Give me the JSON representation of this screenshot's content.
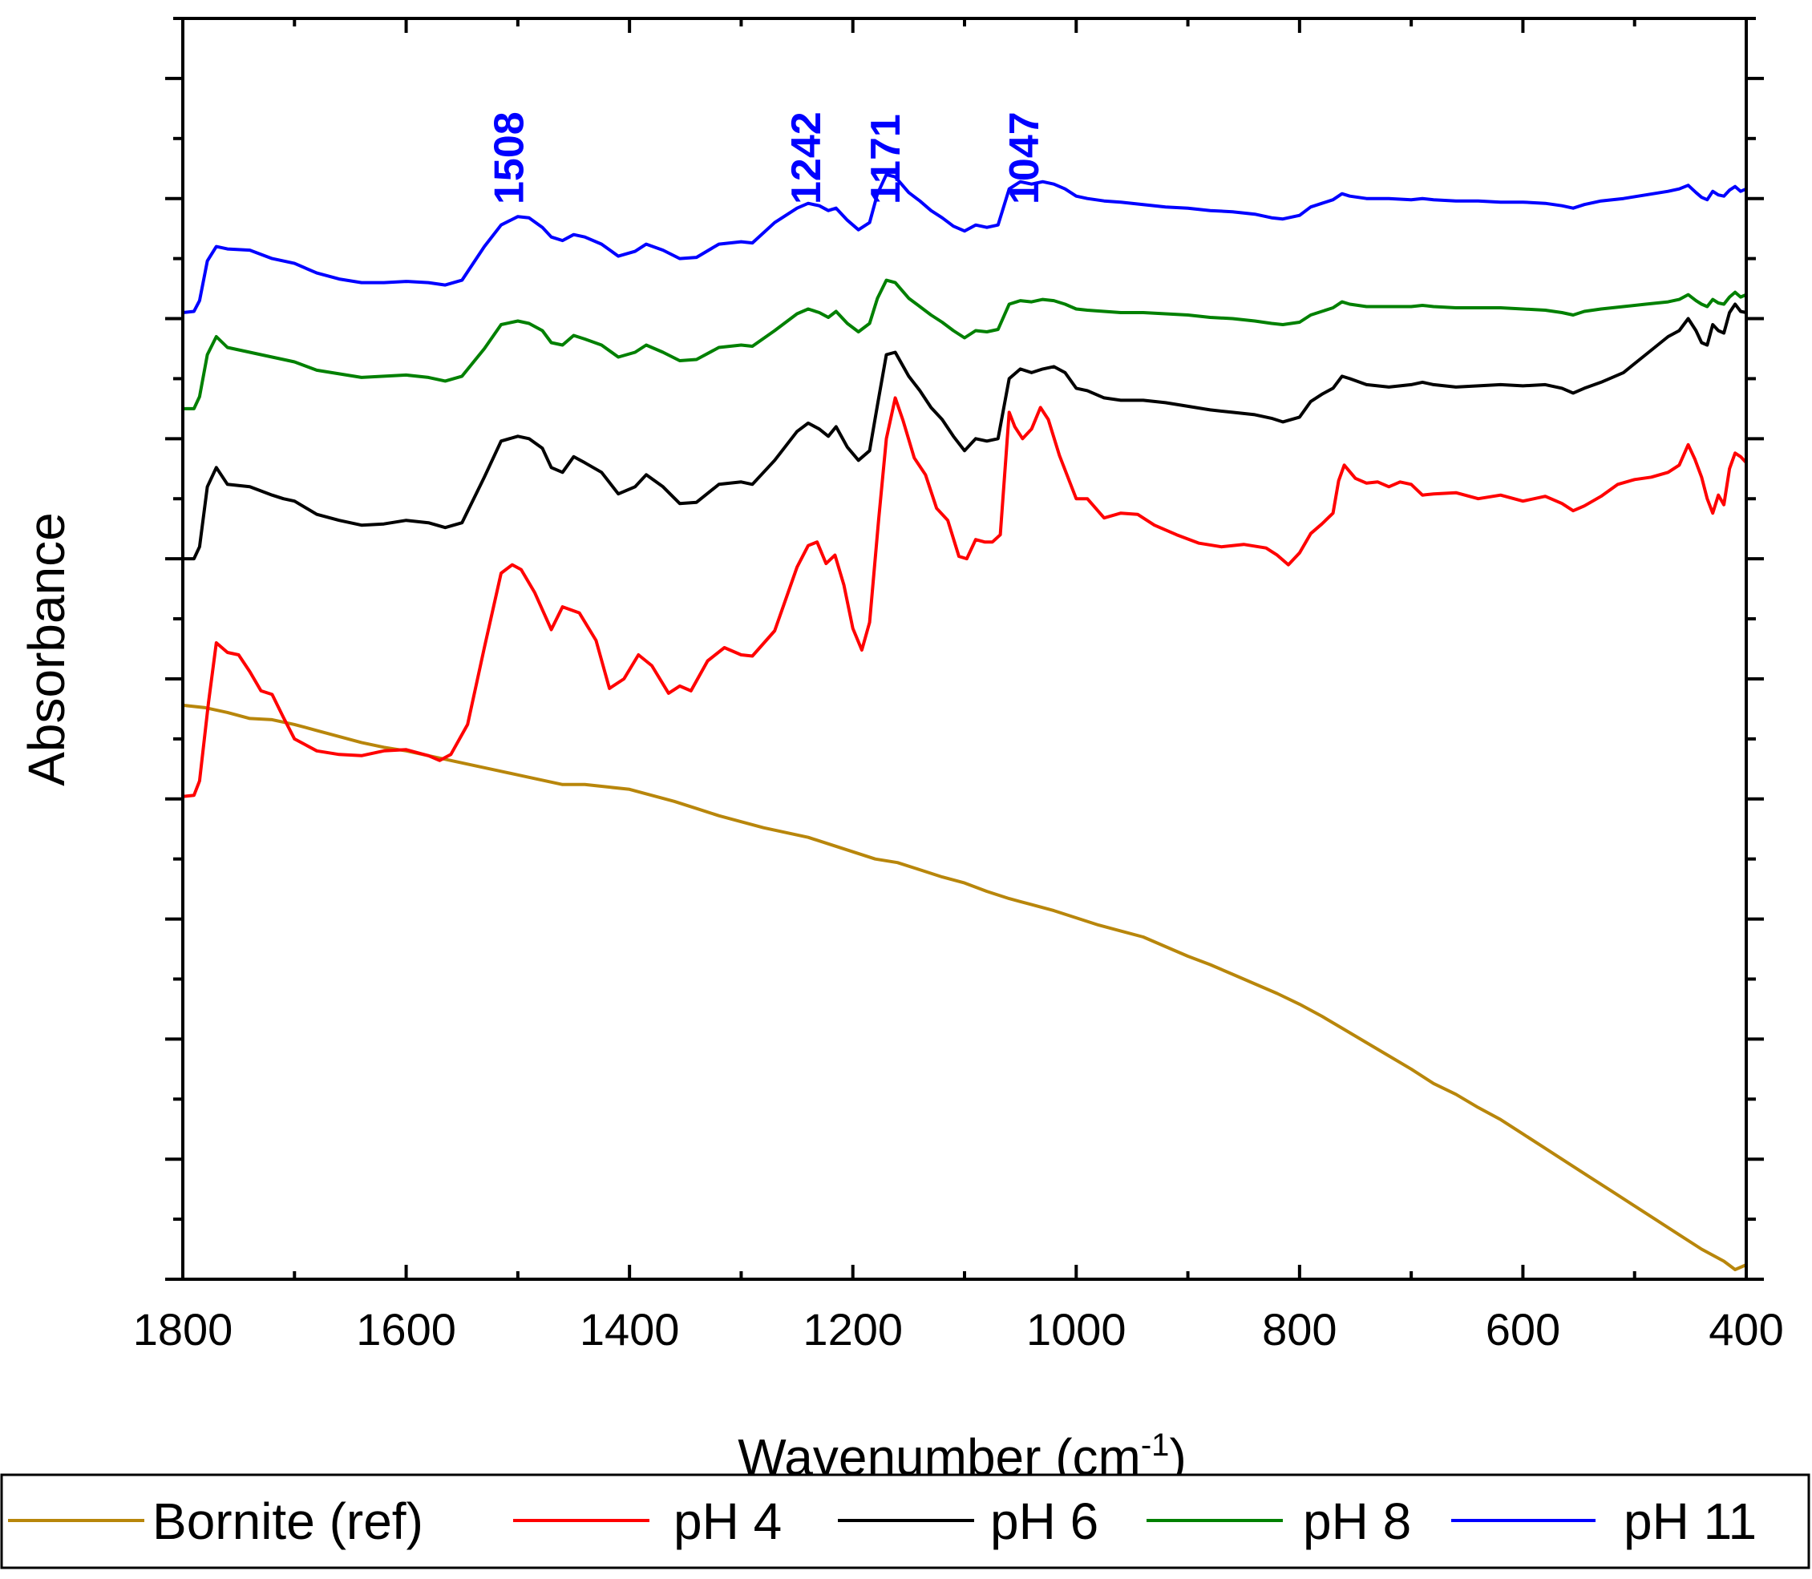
{
  "chart_data": {
    "type": "line",
    "title": "",
    "xlabel": "Wavenumber (cm",
    "xlabel_sup": "-1",
    "xlabel_close": ")",
    "ylabel": "Absorbance",
    "xlim": [
      1800,
      400
    ],
    "ylim": [
      0,
      1.05
    ],
    "x_ticks": [
      1800,
      1600,
      1400,
      1200,
      1000,
      800,
      600,
      400
    ],
    "x_tick_labels": [
      "1800",
      "1600",
      "1400",
      "1200",
      "1000",
      "800",
      "600",
      "400"
    ],
    "y_tick_labels_shown": false,
    "grid": false,
    "legend_position": "bottom",
    "peak_annotations": [
      {
        "label": "1508",
        "x": 1508
      },
      {
        "label": "1242",
        "x": 1242
      },
      {
        "label": "1171",
        "x": 1171
      },
      {
        "label": "1047",
        "x": 1047
      }
    ],
    "annotation_color": "#0000ff",
    "series": [
      {
        "name": "Bornite (ref)",
        "color": "#b8860b",
        "x": [
          1800,
          1780,
          1760,
          1740,
          1720,
          1700,
          1680,
          1660,
          1640,
          1620,
          1600,
          1580,
          1560,
          1540,
          1520,
          1500,
          1480,
          1460,
          1440,
          1420,
          1400,
          1380,
          1360,
          1340,
          1320,
          1300,
          1280,
          1260,
          1240,
          1220,
          1200,
          1180,
          1160,
          1140,
          1120,
          1100,
          1080,
          1060,
          1040,
          1020,
          1000,
          980,
          960,
          940,
          920,
          900,
          880,
          860,
          840,
          820,
          800,
          780,
          760,
          740,
          720,
          700,
          680,
          660,
          640,
          620,
          600,
          580,
          560,
          540,
          520,
          500,
          480,
          460,
          440,
          420,
          410,
          400
        ],
        "y": [
          0.478,
          0.476,
          0.472,
          0.467,
          0.466,
          0.462,
          0.457,
          0.452,
          0.447,
          0.443,
          0.44,
          0.436,
          0.432,
          0.428,
          0.424,
          0.42,
          0.416,
          0.412,
          0.412,
          0.41,
          0.408,
          0.403,
          0.398,
          0.392,
          0.386,
          0.381,
          0.376,
          0.372,
          0.368,
          0.362,
          0.356,
          0.35,
          0.347,
          0.341,
          0.335,
          0.33,
          0.323,
          0.317,
          0.312,
          0.307,
          0.301,
          0.295,
          0.29,
          0.285,
          0.277,
          0.269,
          0.262,
          0.254,
          0.246,
          0.238,
          0.229,
          0.219,
          0.208,
          0.197,
          0.186,
          0.175,
          0.163,
          0.154,
          0.143,
          0.133,
          0.121,
          0.109,
          0.097,
          0.085,
          0.073,
          0.061,
          0.049,
          0.037,
          0.025,
          0.015,
          0.008,
          0.012
        ]
      },
      {
        "name": "pH 4",
        "color": "#ff0000",
        "x": [
          1800,
          1790,
          1785,
          1777,
          1770,
          1760,
          1750,
          1740,
          1730,
          1720,
          1710,
          1700,
          1680,
          1660,
          1640,
          1620,
          1600,
          1580,
          1570,
          1560,
          1545,
          1530,
          1515,
          1505,
          1497,
          1485,
          1470,
          1460,
          1445,
          1430,
          1418,
          1405,
          1392,
          1380,
          1365,
          1355,
          1345,
          1330,
          1315,
          1300,
          1290,
          1270,
          1250,
          1240,
          1232,
          1224,
          1216,
          1208,
          1200,
          1192,
          1185,
          1177,
          1170,
          1162,
          1155,
          1145,
          1135,
          1125,
          1115,
          1105,
          1098,
          1090,
          1082,
          1075,
          1068,
          1060,
          1055,
          1048,
          1040,
          1032,
          1025,
          1015,
          1000,
          990,
          975,
          960,
          945,
          930,
          910,
          890,
          870,
          850,
          830,
          820,
          810,
          800,
          790,
          780,
          770,
          765,
          760,
          750,
          740,
          730,
          720,
          710,
          700,
          690,
          680,
          660,
          640,
          620,
          600,
          580,
          565,
          555,
          545,
          530,
          515,
          500,
          485,
          470,
          460,
          452,
          446,
          440,
          435,
          430,
          425,
          420,
          415,
          410,
          405,
          400
        ],
        "y": [
          0.402,
          0.403,
          0.415,
          0.48,
          0.53,
          0.522,
          0.52,
          0.506,
          0.49,
          0.487,
          0.468,
          0.45,
          0.44,
          0.437,
          0.436,
          0.44,
          0.441,
          0.436,
          0.432,
          0.437,
          0.462,
          0.526,
          0.588,
          0.595,
          0.591,
          0.572,
          0.541,
          0.56,
          0.555,
          0.532,
          0.492,
          0.5,
          0.52,
          0.511,
          0.488,
          0.494,
          0.49,
          0.515,
          0.526,
          0.52,
          0.519,
          0.54,
          0.593,
          0.611,
          0.614,
          0.596,
          0.603,
          0.578,
          0.542,
          0.524,
          0.547,
          0.632,
          0.7,
          0.734,
          0.715,
          0.684,
          0.67,
          0.642,
          0.632,
          0.602,
          0.6,
          0.616,
          0.614,
          0.614,
          0.62,
          0.722,
          0.71,
          0.7,
          0.708,
          0.726,
          0.716,
          0.686,
          0.65,
          0.65,
          0.634,
          0.638,
          0.637,
          0.628,
          0.62,
          0.613,
          0.61,
          0.612,
          0.609,
          0.603,
          0.595,
          0.605,
          0.621,
          0.629,
          0.638,
          0.665,
          0.678,
          0.667,
          0.663,
          0.664,
          0.66,
          0.664,
          0.662,
          0.653,
          0.654,
          0.655,
          0.65,
          0.653,
          0.648,
          0.652,
          0.646,
          0.64,
          0.644,
          0.652,
          0.662,
          0.666,
          0.668,
          0.672,
          0.678,
          0.695,
          0.683,
          0.668,
          0.65,
          0.638,
          0.653,
          0.645,
          0.675,
          0.688,
          0.685,
          0.68
        ]
      },
      {
        "name": "pH 6",
        "color": "#000000",
        "x": [
          1800,
          1790,
          1785,
          1778,
          1770,
          1760,
          1740,
          1720,
          1710,
          1700,
          1680,
          1660,
          1640,
          1620,
          1600,
          1580,
          1565,
          1550,
          1530,
          1515,
          1500,
          1490,
          1478,
          1470,
          1460,
          1450,
          1440,
          1425,
          1410,
          1395,
          1385,
          1370,
          1355,
          1340,
          1320,
          1300,
          1290,
          1270,
          1250,
          1240,
          1230,
          1222,
          1215,
          1205,
          1195,
          1185,
          1178,
          1170,
          1162,
          1150,
          1140,
          1130,
          1120,
          1110,
          1100,
          1090,
          1080,
          1070,
          1060,
          1050,
          1040,
          1030,
          1020,
          1010,
          1000,
          990,
          975,
          960,
          940,
          920,
          900,
          880,
          860,
          840,
          825,
          815,
          800,
          790,
          780,
          770,
          762,
          755,
          740,
          720,
          700,
          690,
          680,
          660,
          640,
          620,
          600,
          580,
          565,
          555,
          545,
          530,
          510,
          490,
          470,
          460,
          452,
          445,
          440,
          435,
          430,
          425,
          420,
          415,
          410,
          405,
          400
        ],
        "y": [
          0.6,
          0.6,
          0.61,
          0.66,
          0.676,
          0.662,
          0.66,
          0.653,
          0.65,
          0.648,
          0.637,
          0.632,
          0.628,
          0.629,
          0.632,
          0.63,
          0.626,
          0.63,
          0.668,
          0.698,
          0.702,
          0.7,
          0.692,
          0.676,
          0.672,
          0.685,
          0.68,
          0.672,
          0.654,
          0.66,
          0.67,
          0.66,
          0.646,
          0.647,
          0.662,
          0.664,
          0.662,
          0.682,
          0.706,
          0.713,
          0.708,
          0.702,
          0.71,
          0.693,
          0.682,
          0.69,
          0.728,
          0.77,
          0.772,
          0.752,
          0.74,
          0.726,
          0.716,
          0.702,
          0.69,
          0.7,
          0.698,
          0.7,
          0.75,
          0.758,
          0.755,
          0.758,
          0.76,
          0.755,
          0.742,
          0.74,
          0.734,
          0.732,
          0.732,
          0.73,
          0.727,
          0.724,
          0.722,
          0.72,
          0.717,
          0.714,
          0.718,
          0.731,
          0.737,
          0.742,
          0.752,
          0.75,
          0.745,
          0.743,
          0.745,
          0.747,
          0.745,
          0.743,
          0.744,
          0.745,
          0.744,
          0.745,
          0.742,
          0.738,
          0.742,
          0.747,
          0.755,
          0.77,
          0.785,
          0.79,
          0.8,
          0.79,
          0.78,
          0.778,
          0.795,
          0.79,
          0.788,
          0.805,
          0.812,
          0.806,
          0.805
        ]
      },
      {
        "name": "pH 8",
        "color": "#008000",
        "x": [
          1800,
          1790,
          1785,
          1778,
          1770,
          1760,
          1740,
          1720,
          1710,
          1700,
          1680,
          1660,
          1640,
          1620,
          1600,
          1580,
          1565,
          1550,
          1530,
          1515,
          1500,
          1490,
          1478,
          1470,
          1460,
          1450,
          1440,
          1425,
          1410,
          1395,
          1385,
          1370,
          1355,
          1340,
          1320,
          1300,
          1290,
          1270,
          1250,
          1240,
          1230,
          1222,
          1215,
          1205,
          1195,
          1185,
          1178,
          1170,
          1162,
          1150,
          1140,
          1130,
          1120,
          1110,
          1100,
          1090,
          1080,
          1070,
          1060,
          1050,
          1040,
          1030,
          1020,
          1010,
          1000,
          990,
          975,
          960,
          940,
          920,
          900,
          880,
          860,
          840,
          825,
          815,
          800,
          790,
          780,
          770,
          762,
          755,
          740,
          720,
          700,
          690,
          680,
          660,
          640,
          620,
          600,
          580,
          565,
          555,
          545,
          530,
          510,
          490,
          470,
          460,
          452,
          445,
          440,
          435,
          430,
          425,
          420,
          415,
          410,
          405,
          400
        ],
        "y": [
          0.725,
          0.725,
          0.735,
          0.77,
          0.785,
          0.776,
          0.772,
          0.768,
          0.766,
          0.764,
          0.757,
          0.754,
          0.751,
          0.752,
          0.753,
          0.751,
          0.748,
          0.752,
          0.775,
          0.795,
          0.798,
          0.796,
          0.79,
          0.78,
          0.778,
          0.786,
          0.783,
          0.778,
          0.768,
          0.772,
          0.778,
          0.772,
          0.765,
          0.766,
          0.776,
          0.778,
          0.777,
          0.79,
          0.804,
          0.808,
          0.805,
          0.801,
          0.806,
          0.796,
          0.789,
          0.796,
          0.817,
          0.832,
          0.83,
          0.817,
          0.81,
          0.803,
          0.797,
          0.79,
          0.784,
          0.79,
          0.789,
          0.791,
          0.812,
          0.815,
          0.814,
          0.816,
          0.815,
          0.812,
          0.808,
          0.807,
          0.806,
          0.805,
          0.805,
          0.804,
          0.803,
          0.801,
          0.8,
          0.798,
          0.796,
          0.795,
          0.797,
          0.803,
          0.806,
          0.809,
          0.814,
          0.812,
          0.81,
          0.81,
          0.81,
          0.811,
          0.81,
          0.809,
          0.809,
          0.809,
          0.808,
          0.807,
          0.805,
          0.803,
          0.806,
          0.808,
          0.81,
          0.812,
          0.814,
          0.816,
          0.82,
          0.815,
          0.812,
          0.81,
          0.816,
          0.813,
          0.812,
          0.818,
          0.822,
          0.818,
          0.82
        ]
      },
      {
        "name": "pH 11",
        "color": "#0000ff",
        "x": [
          1800,
          1790,
          1785,
          1778,
          1770,
          1760,
          1740,
          1720,
          1710,
          1700,
          1680,
          1660,
          1640,
          1620,
          1600,
          1580,
          1565,
          1550,
          1530,
          1515,
          1500,
          1490,
          1478,
          1470,
          1460,
          1450,
          1440,
          1425,
          1410,
          1395,
          1385,
          1370,
          1355,
          1340,
          1320,
          1300,
          1290,
          1270,
          1250,
          1240,
          1230,
          1222,
          1215,
          1205,
          1195,
          1185,
          1178,
          1170,
          1162,
          1150,
          1140,
          1130,
          1120,
          1110,
          1100,
          1090,
          1080,
          1070,
          1060,
          1050,
          1040,
          1030,
          1020,
          1010,
          1000,
          990,
          975,
          960,
          940,
          920,
          900,
          880,
          860,
          840,
          825,
          815,
          800,
          790,
          780,
          770,
          762,
          755,
          740,
          720,
          700,
          690,
          680,
          660,
          640,
          620,
          600,
          580,
          565,
          555,
          545,
          530,
          510,
          490,
          470,
          460,
          452,
          445,
          440,
          435,
          430,
          425,
          420,
          415,
          410,
          405,
          400
        ],
        "y": [
          0.805,
          0.806,
          0.815,
          0.848,
          0.86,
          0.858,
          0.857,
          0.85,
          0.848,
          0.846,
          0.838,
          0.833,
          0.83,
          0.83,
          0.831,
          0.83,
          0.828,
          0.832,
          0.86,
          0.878,
          0.885,
          0.884,
          0.876,
          0.868,
          0.865,
          0.87,
          0.868,
          0.862,
          0.852,
          0.856,
          0.862,
          0.857,
          0.85,
          0.851,
          0.862,
          0.864,
          0.863,
          0.88,
          0.892,
          0.896,
          0.894,
          0.89,
          0.892,
          0.882,
          0.874,
          0.88,
          0.904,
          0.92,
          0.918,
          0.905,
          0.898,
          0.89,
          0.884,
          0.877,
          0.873,
          0.878,
          0.876,
          0.878,
          0.908,
          0.914,
          0.912,
          0.914,
          0.912,
          0.908,
          0.902,
          0.9,
          0.898,
          0.897,
          0.895,
          0.893,
          0.892,
          0.89,
          0.889,
          0.887,
          0.884,
          0.883,
          0.886,
          0.893,
          0.896,
          0.899,
          0.904,
          0.902,
          0.9,
          0.9,
          0.899,
          0.9,
          0.899,
          0.898,
          0.898,
          0.897,
          0.897,
          0.896,
          0.894,
          0.892,
          0.895,
          0.898,
          0.9,
          0.903,
          0.906,
          0.908,
          0.911,
          0.905,
          0.901,
          0.899,
          0.906,
          0.903,
          0.902,
          0.907,
          0.91,
          0.906,
          0.908
        ]
      }
    ]
  }
}
